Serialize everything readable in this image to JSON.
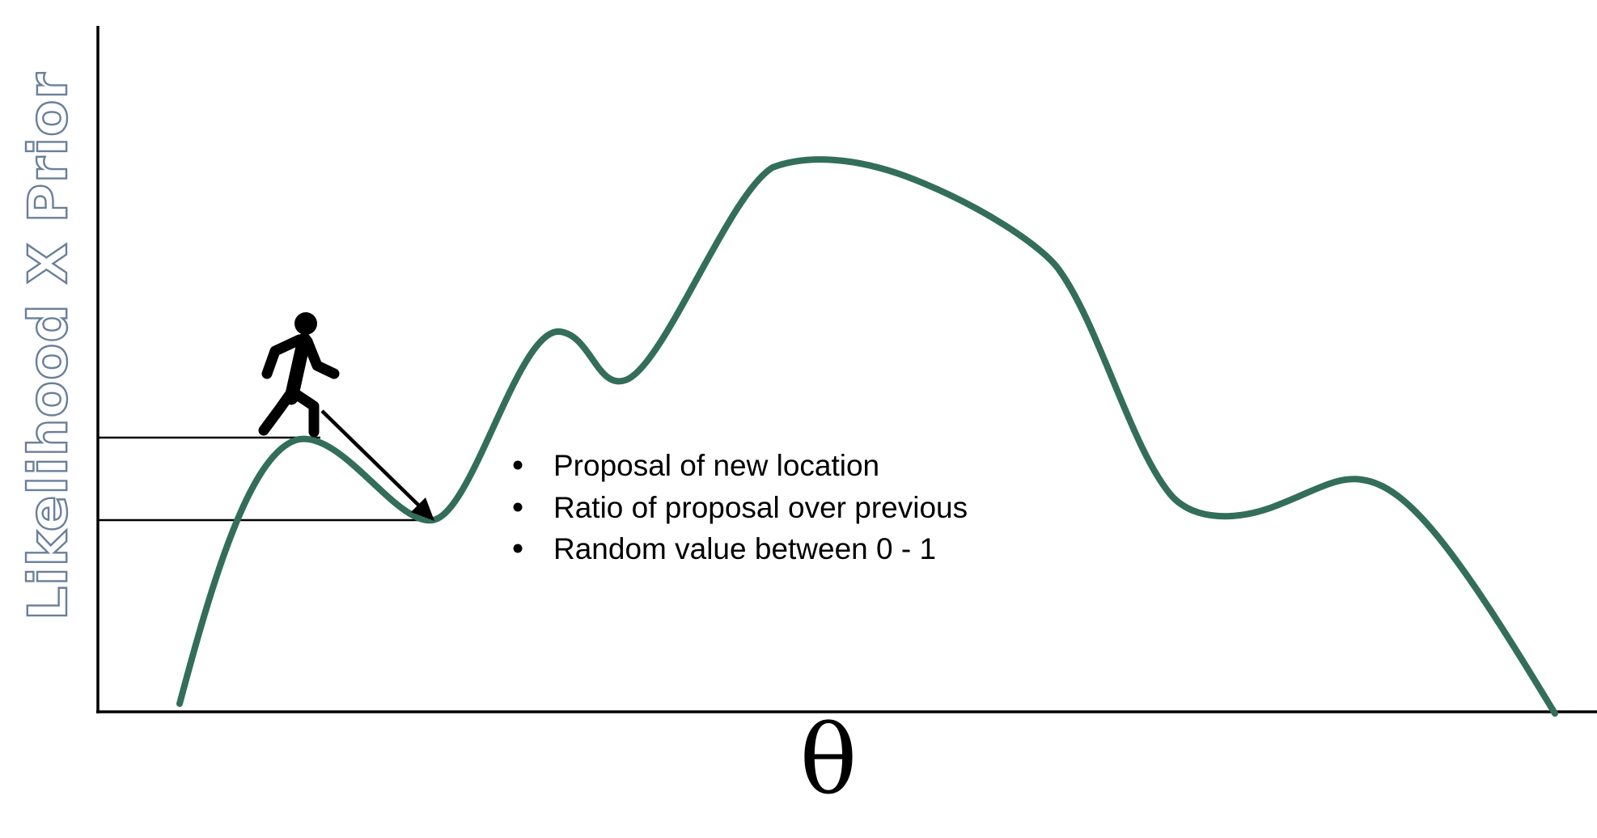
{
  "figure": {
    "y_axis_label": "Likelihood X Prior",
    "x_axis_label": "θ",
    "bullets": [
      "Proposal of new location",
      "Ratio of proposal over previous",
      "Random value between 0 - 1"
    ],
    "icons": [
      "walking-person-icon",
      "proposal-arrow-icon"
    ]
  },
  "colors": {
    "curve": "#336e5a",
    "axis": "#000000",
    "label_outline": "#6a7f9a"
  }
}
